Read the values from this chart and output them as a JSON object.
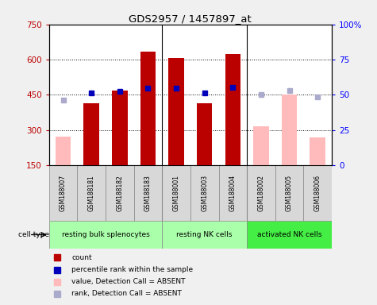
{
  "title": "GDS2957 / 1457897_at",
  "samples": [
    "GSM188007",
    "GSM188181",
    "GSM188182",
    "GSM188183",
    "GSM188001",
    "GSM188003",
    "GSM188004",
    "GSM188002",
    "GSM188005",
    "GSM188006"
  ],
  "count_values": [
    null,
    415,
    470,
    635,
    608,
    415,
    625,
    null,
    null,
    null
  ],
  "absent_value_values": [
    272,
    null,
    null,
    null,
    null,
    null,
    null,
    318,
    450,
    270
  ],
  "percentile_values": [
    null,
    460,
    465,
    480,
    478,
    458,
    482,
    null,
    null,
    null
  ],
  "absent_rank_values": [
    427,
    null,
    null,
    null,
    null,
    null,
    null,
    453,
    467,
    443
  ],
  "ylim_left": [
    150,
    750
  ],
  "ylim_right": [
    0,
    100
  ],
  "yticks_left": [
    150,
    300,
    450,
    600,
    750
  ],
  "ytick_labels_left": [
    "150",
    "300",
    "450",
    "600",
    "750"
  ],
  "yticks_right": [
    0,
    25,
    50,
    75,
    100
  ],
  "ytick_labels_right": [
    "0",
    "25",
    "50",
    "75",
    "100%"
  ],
  "bar_width": 0.55,
  "count_color": "#bb0000",
  "absent_value_color": "#ffbbbb",
  "percentile_color": "#0000bb",
  "absent_rank_color": "#aaaacc",
  "plot_bg_color": "#ffffff",
  "separator_indices": [
    4,
    7
  ],
  "group_info": [
    {
      "label": "resting bulk splenocytes",
      "start": 0,
      "end": 4,
      "color": "#aaffaa"
    },
    {
      "label": "resting NK cells",
      "start": 4,
      "end": 7,
      "color": "#aaffaa"
    },
    {
      "label": "activated NK cells",
      "start": 7,
      "end": 10,
      "color": "#44ee44"
    }
  ],
  "legend_items": [
    {
      "label": "count",
      "color": "#bb0000"
    },
    {
      "label": "percentile rank within the sample",
      "color": "#0000bb"
    },
    {
      "label": "value, Detection Call = ABSENT",
      "color": "#ffbbbb"
    },
    {
      "label": "rank, Detection Call = ABSENT",
      "color": "#aaaacc"
    }
  ],
  "cell_type_label": "cell type"
}
